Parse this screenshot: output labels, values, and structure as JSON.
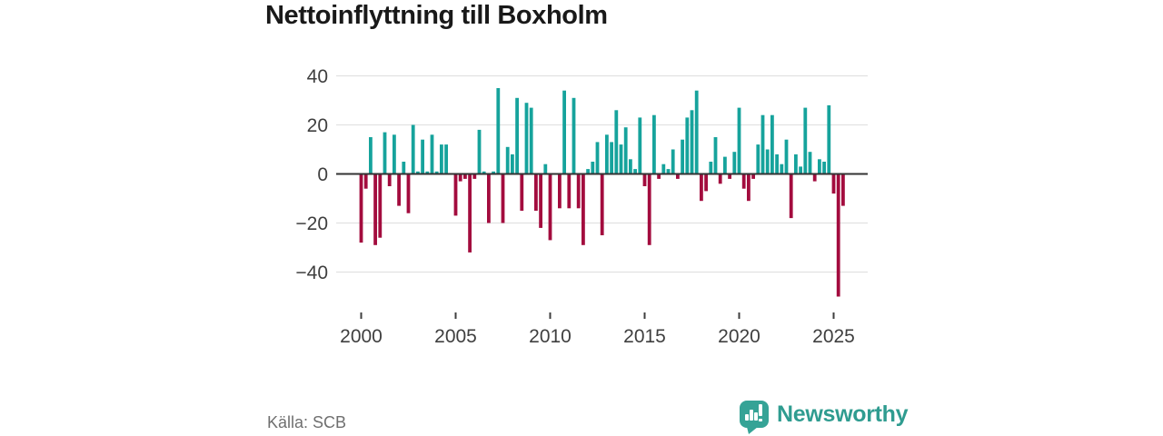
{
  "title": "Nettoinflyttning till Boxholm",
  "footer": {
    "source": "Källa: SCB",
    "brand": "Newsworthy"
  },
  "chart_data": {
    "type": "bar",
    "title": "Nettoinflyttning till Boxholm",
    "frequency": "quarterly",
    "x_start": "2000-Q1",
    "x_end": "2025-Q3",
    "ylim": [
      -52,
      42
    ],
    "grid": "horizontal",
    "legend": "none",
    "colors": {
      "positive": "#16a39c",
      "negative": "#a30c3e",
      "grid": "#e1e1e1",
      "zero_line": "#333333",
      "axis_text": "#3f3f3f"
    },
    "y_ticks": [
      {
        "label": "40",
        "value": 40
      },
      {
        "label": "20",
        "value": 20
      },
      {
        "label": "0",
        "value": 0
      },
      {
        "label": "−20",
        "value": -20
      },
      {
        "label": "−40",
        "value": -40
      }
    ],
    "x_ticks": [
      {
        "label": "2000",
        "index": 0
      },
      {
        "label": "2005",
        "index": 20
      },
      {
        "label": "2010",
        "index": 40
      },
      {
        "label": "2015",
        "index": 60
      },
      {
        "label": "2020",
        "index": 80
      },
      {
        "label": "2025",
        "index": 100
      }
    ],
    "values": [
      -28,
      -6,
      15,
      -29,
      -26,
      17,
      -5,
      16,
      -13,
      5,
      -16,
      20,
      1,
      14,
      1,
      16,
      1,
      12,
      12,
      0,
      -17,
      -3,
      -2,
      -32,
      -2,
      18,
      1,
      -20,
      1,
      35,
      -20,
      11,
      8,
      31,
      -15,
      29,
      27,
      -15,
      -22,
      4,
      -27,
      0,
      -14,
      34,
      -14,
      31,
      -14,
      -29,
      2,
      5,
      13,
      -25,
      16,
      13,
      26,
      12,
      19,
      6,
      2,
      23,
      -5,
      -29,
      24,
      -2,
      4,
      2,
      10,
      -2,
      14,
      23,
      26,
      34,
      -11,
      -7,
      5,
      15,
      -4,
      7,
      -2,
      9,
      27,
      -6,
      -11,
      -2,
      12,
      24,
      10,
      24,
      8,
      4,
      14,
      -18,
      8,
      3,
      27,
      9,
      -3,
      6,
      5,
      28,
      -8,
      -50,
      -13
    ]
  }
}
